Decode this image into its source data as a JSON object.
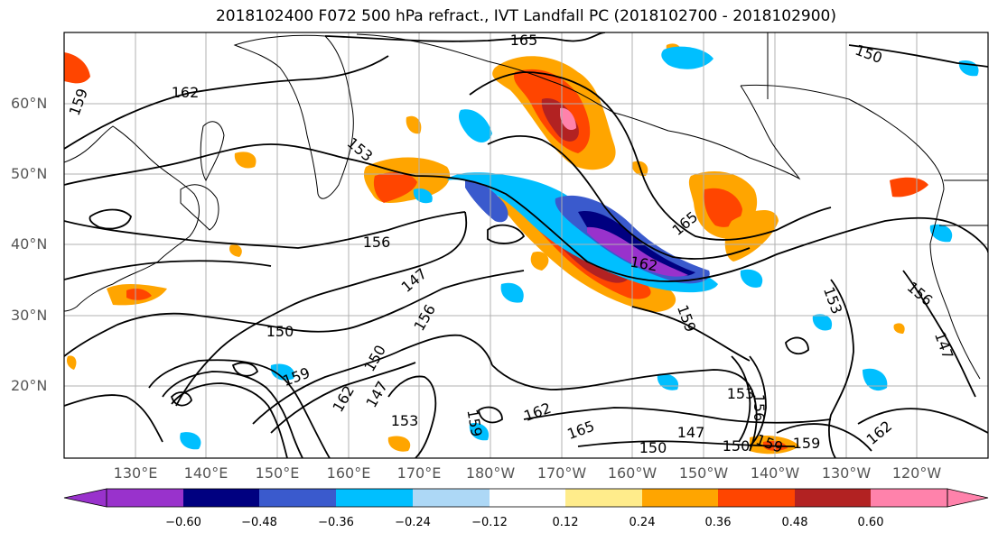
{
  "title": "2018102400 F072 500 hPa refract., IVT Landfall PC (2018102700 - 2018102900)",
  "map": {
    "lat_labels": [
      "60°N",
      "50°N",
      "40°N",
      "30°N",
      "20°N"
    ],
    "lon_labels": [
      "130°E",
      "140°E",
      "150°E",
      "160°E",
      "170°E",
      "180°W",
      "170°W",
      "160°W",
      "150°W",
      "140°W",
      "130°W",
      "120°W"
    ],
    "contour_labels": [
      "165",
      "162",
      "159",
      "153",
      "156",
      "147",
      "150",
      "159",
      "162",
      "153",
      "150",
      "147",
      "156",
      "159",
      "162",
      "165",
      "150",
      "147",
      "153",
      "156",
      "150",
      "159",
      "162"
    ],
    "contour_color": "#000000"
  },
  "colorbar": {
    "colors": [
      "#9932cc",
      "#000080",
      "#3a5acd",
      "#00bfff",
      "#add8f6",
      "#ffffff",
      "#ffec8b",
      "#ffa500",
      "#ff4500",
      "#b22222",
      "#ff82ab"
    ],
    "labels": [
      "−0.60",
      "−0.48",
      "−0.36",
      "−0.24",
      "−0.12",
      "0.12",
      "0.24",
      "0.36",
      "0.48",
      "0.60"
    ]
  }
}
